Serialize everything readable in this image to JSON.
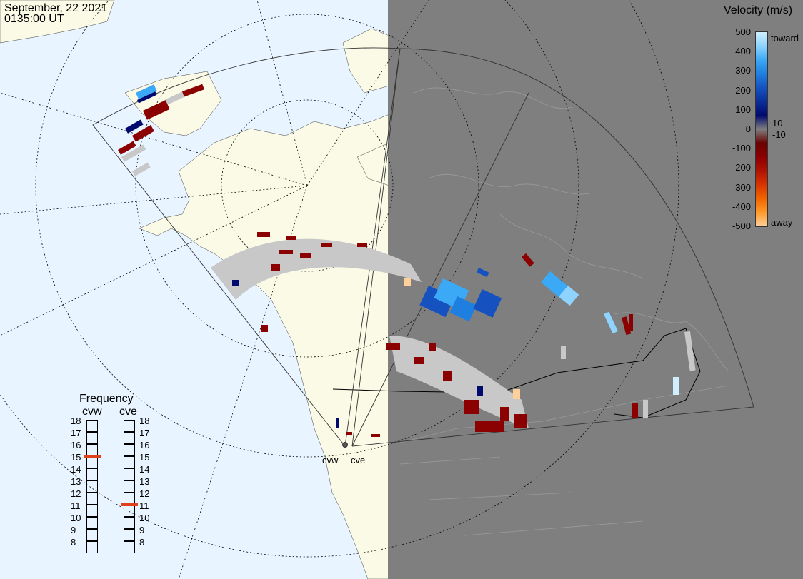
{
  "header": {
    "date": "September, 22 2021",
    "time": "0135:00 UT"
  },
  "colorbar": {
    "title": "Velocity (m/s)",
    "ticks": [
      "500",
      "400",
      "300",
      "200",
      "100",
      "0",
      "-100",
      "-200",
      "-300",
      "-400",
      "-500"
    ],
    "toward_label": "toward",
    "away_label": "away",
    "pos_min_label": "10",
    "neg_min_label": "-10",
    "gradient": [
      "#cfefff",
      "#8fd4ff",
      "#3ba9f5",
      "#1f7fe0",
      "#1552c0",
      "#0a2f9a",
      "#000a6e",
      "#7f7f7f",
      "#6b0000",
      "#8b0000",
      "#b01200",
      "#d83400",
      "#f06400",
      "#ff9a2a",
      "#ffcf9a"
    ]
  },
  "frequency": {
    "title": "Frequency",
    "radars": [
      {
        "name": "cvw",
        "value": 15
      },
      {
        "name": "cve",
        "value": 11
      }
    ],
    "scale": [
      "18",
      "17",
      "16",
      "15",
      "14",
      "13",
      "12",
      "11",
      "10",
      "9",
      "8"
    ]
  },
  "map": {
    "radar_sites": [
      "cvw",
      "cve"
    ],
    "colors": {
      "ocean": "#e8f4ff",
      "land": "#fafae6",
      "night": "#7f7f7f",
      "ground_scatter": "#c8c8c8",
      "away_dark": "#8b0000"
    }
  }
}
